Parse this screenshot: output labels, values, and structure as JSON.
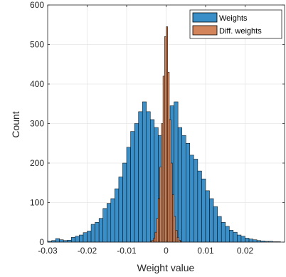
{
  "chart_data": {
    "type": "bar",
    "xlabel": "Weight value",
    "ylabel": "Count",
    "xlim": [
      -0.03,
      0.03
    ],
    "ylim": [
      0,
      600
    ],
    "x_ticks": [
      -0.03,
      -0.02,
      -0.01,
      0,
      0.01,
      0.02
    ],
    "x_tick_labels": [
      "-0.03",
      "-0.02",
      "-0.01",
      "0",
      "0.01",
      "0.02"
    ],
    "y_ticks": [
      0,
      100,
      200,
      300,
      400,
      500,
      600
    ],
    "y_tick_labels": [
      "0",
      "100",
      "200",
      "300",
      "400",
      "500",
      "600"
    ],
    "grid": true,
    "legend_position": "top-right",
    "series": [
      {
        "name": "Weights",
        "color": "#3a8fc9",
        "bin_width": 0.001,
        "x": [
          -0.0295,
          -0.0285,
          -0.0275,
          -0.0265,
          -0.0255,
          -0.0245,
          -0.0235,
          -0.0225,
          -0.0215,
          -0.0205,
          -0.0195,
          -0.0185,
          -0.0175,
          -0.0165,
          -0.0155,
          -0.0145,
          -0.0135,
          -0.0125,
          -0.0115,
          -0.0105,
          -0.0095,
          -0.0085,
          -0.0075,
          -0.0065,
          -0.0055,
          -0.0045,
          -0.0035,
          -0.0025,
          -0.0015,
          -0.0005,
          0.0005,
          0.0015,
          0.0025,
          0.0035,
          0.0045,
          0.0055,
          0.0065,
          0.0075,
          0.0085,
          0.0095,
          0.0105,
          0.0115,
          0.0125,
          0.0135,
          0.0145,
          0.0155,
          0.0165,
          0.0175,
          0.0185,
          0.0195,
          0.0205,
          0.0215,
          0.0225,
          0.0235,
          0.0245,
          0.0255,
          0.0265,
          0.0275,
          0.0285
        ],
        "values": [
          2,
          4,
          9,
          6,
          4,
          5,
          12,
          15,
          18,
          24,
          28,
          45,
          50,
          60,
          85,
          98,
          110,
          135,
          165,
          200,
          240,
          280,
          300,
          330,
          355,
          330,
          310,
          290,
          270,
          255,
          300,
          345,
          355,
          290,
          270,
          250,
          220,
          210,
          180,
          160,
          130,
          110,
          90,
          65,
          50,
          40,
          30,
          25,
          18,
          15,
          10,
          8,
          6,
          4,
          3,
          2,
          2,
          1,
          1
        ]
      },
      {
        "name": "Diff. weights",
        "color": "#d4845a",
        "bin_width": 0.0004,
        "x": [
          -0.0038,
          -0.0034,
          -0.003,
          -0.0026,
          -0.0022,
          -0.0018,
          -0.0014,
          -0.001,
          -0.0006,
          -0.0002,
          0.0002,
          0.0006,
          0.001,
          0.0014,
          0.0018,
          0.0022,
          0.0026,
          0.003,
          0.0034,
          0.0038
        ],
        "values": [
          2,
          5,
          10,
          25,
          60,
          110,
          190,
          300,
          420,
          520,
          545,
          430,
          310,
          200,
          120,
          65,
          30,
          12,
          5,
          2
        ]
      }
    ]
  }
}
